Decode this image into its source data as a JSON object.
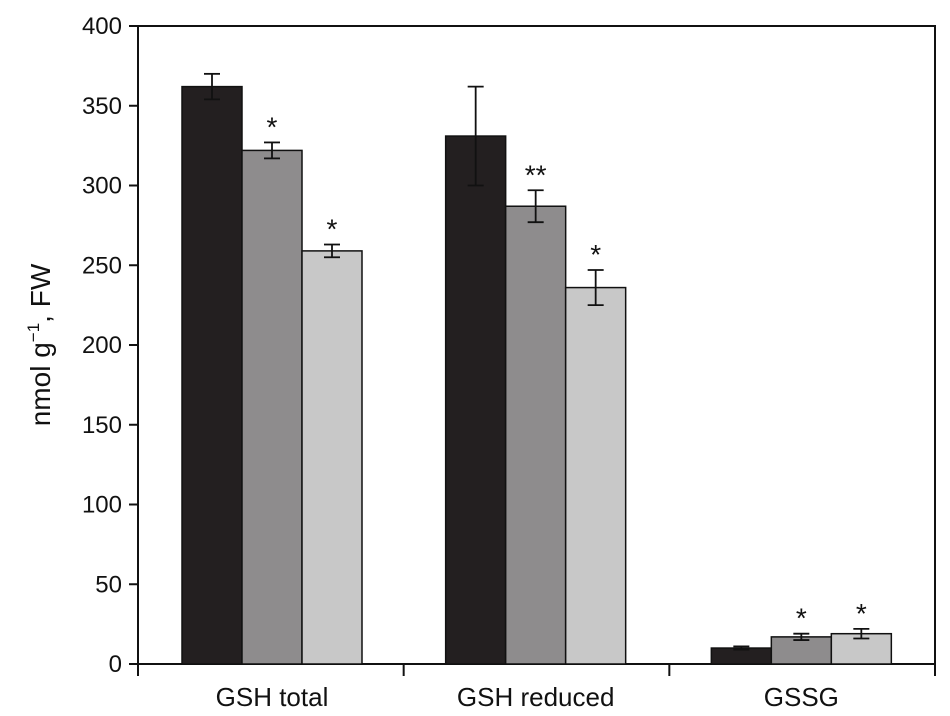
{
  "chart_data": {
    "type": "bar",
    "title": "",
    "xlabel": "",
    "ylabel": {
      "base": "nmol g",
      "superscript": "−1",
      "suffix": ", FW"
    },
    "ylim": [
      0,
      400
    ],
    "yticks": [
      0,
      50,
      100,
      150,
      200,
      250,
      300,
      350,
      400
    ],
    "grid": false,
    "legend": "none",
    "categories": [
      "GSH total",
      "GSH reduced",
      "GSSG"
    ],
    "series": [
      {
        "color": "#231f20",
        "values": [
          362,
          331,
          10
        ],
        "errors": [
          8,
          31,
          1
        ],
        "significance": [
          "",
          "",
          ""
        ]
      },
      {
        "color": "#8e8c8d",
        "values": [
          322,
          287,
          17
        ],
        "errors": [
          5,
          10,
          2
        ],
        "significance": [
          "*",
          "**",
          "*"
        ]
      },
      {
        "color": "#c8c8c8",
        "values": [
          259,
          236,
          19
        ],
        "errors": [
          4,
          11,
          3
        ],
        "significance": [
          "*",
          "*",
          "*"
        ]
      }
    ]
  }
}
